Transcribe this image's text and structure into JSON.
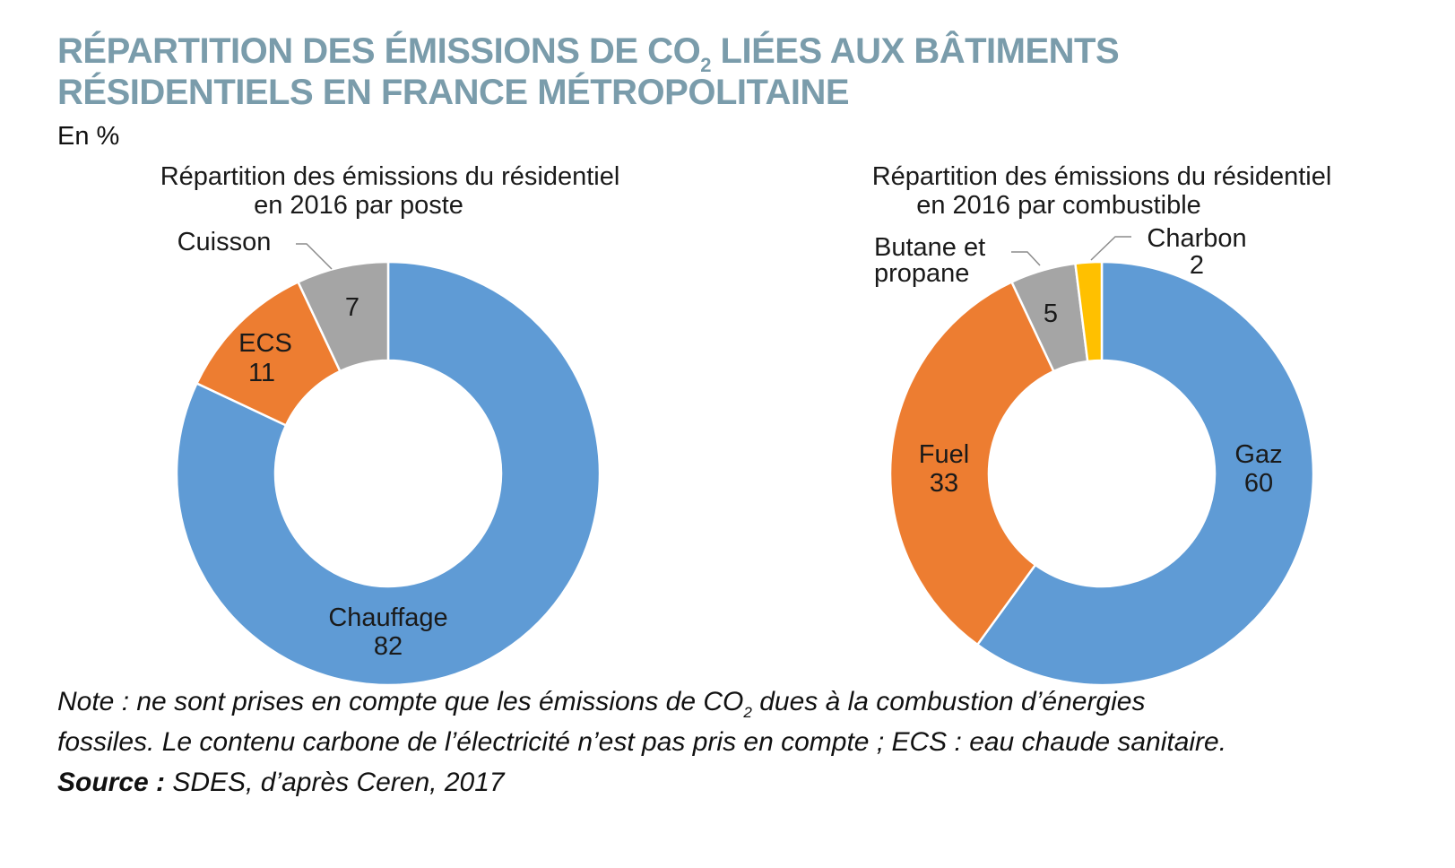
{
  "title": {
    "line1_a": "RÉPARTITION DES ÉMISSIONS DE CO",
    "line1_sub": "2",
    "line1_b": " LIÉES AUX BÂTIMENTS",
    "line2": "RÉSIDENTIELS EN FRANCE MÉTROPOLITAINE"
  },
  "unit": "En %",
  "chart_data": [
    {
      "type": "pie",
      "donut": true,
      "title_lines": [
        "Répartition des émissions du résidentiel",
        "en 2016 par poste"
      ],
      "slices": [
        {
          "label": "Chauffage",
          "value": 82,
          "color": "#5f9bd5"
        },
        {
          "label": "ECS",
          "value": 11,
          "color": "#ed7d31"
        },
        {
          "label": "Cuisson",
          "value": 7,
          "color": "#a5a5a5"
        }
      ]
    },
    {
      "type": "pie",
      "donut": true,
      "title_lines": [
        "Répartition des émissions du résidentiel",
        "en 2016 par combustible"
      ],
      "slices": [
        {
          "label": "Gaz",
          "value": 60,
          "color": "#5f9bd5"
        },
        {
          "label": "Fuel",
          "value": 33,
          "color": "#ed7d31"
        },
        {
          "label": "Butane et propane",
          "label_lines": [
            "Butane et",
            "propane"
          ],
          "value": 5,
          "color": "#a5a5a5"
        },
        {
          "label": "Charbon",
          "value": 2,
          "color": "#ffc000"
        }
      ]
    }
  ],
  "footer": {
    "note_a": "Note : ne sont prises en compte que les émissions de CO",
    "note_sub": "2",
    "note_b": " dues à la combustion d’énergies",
    "note_line2": "fossiles. Le contenu carbone de l’électricité n’est pas pris en compte ; ECS : eau chaude sanitaire.",
    "source_label": "Source :",
    "source_text": " SDES, d’après Ceren, 2017"
  }
}
